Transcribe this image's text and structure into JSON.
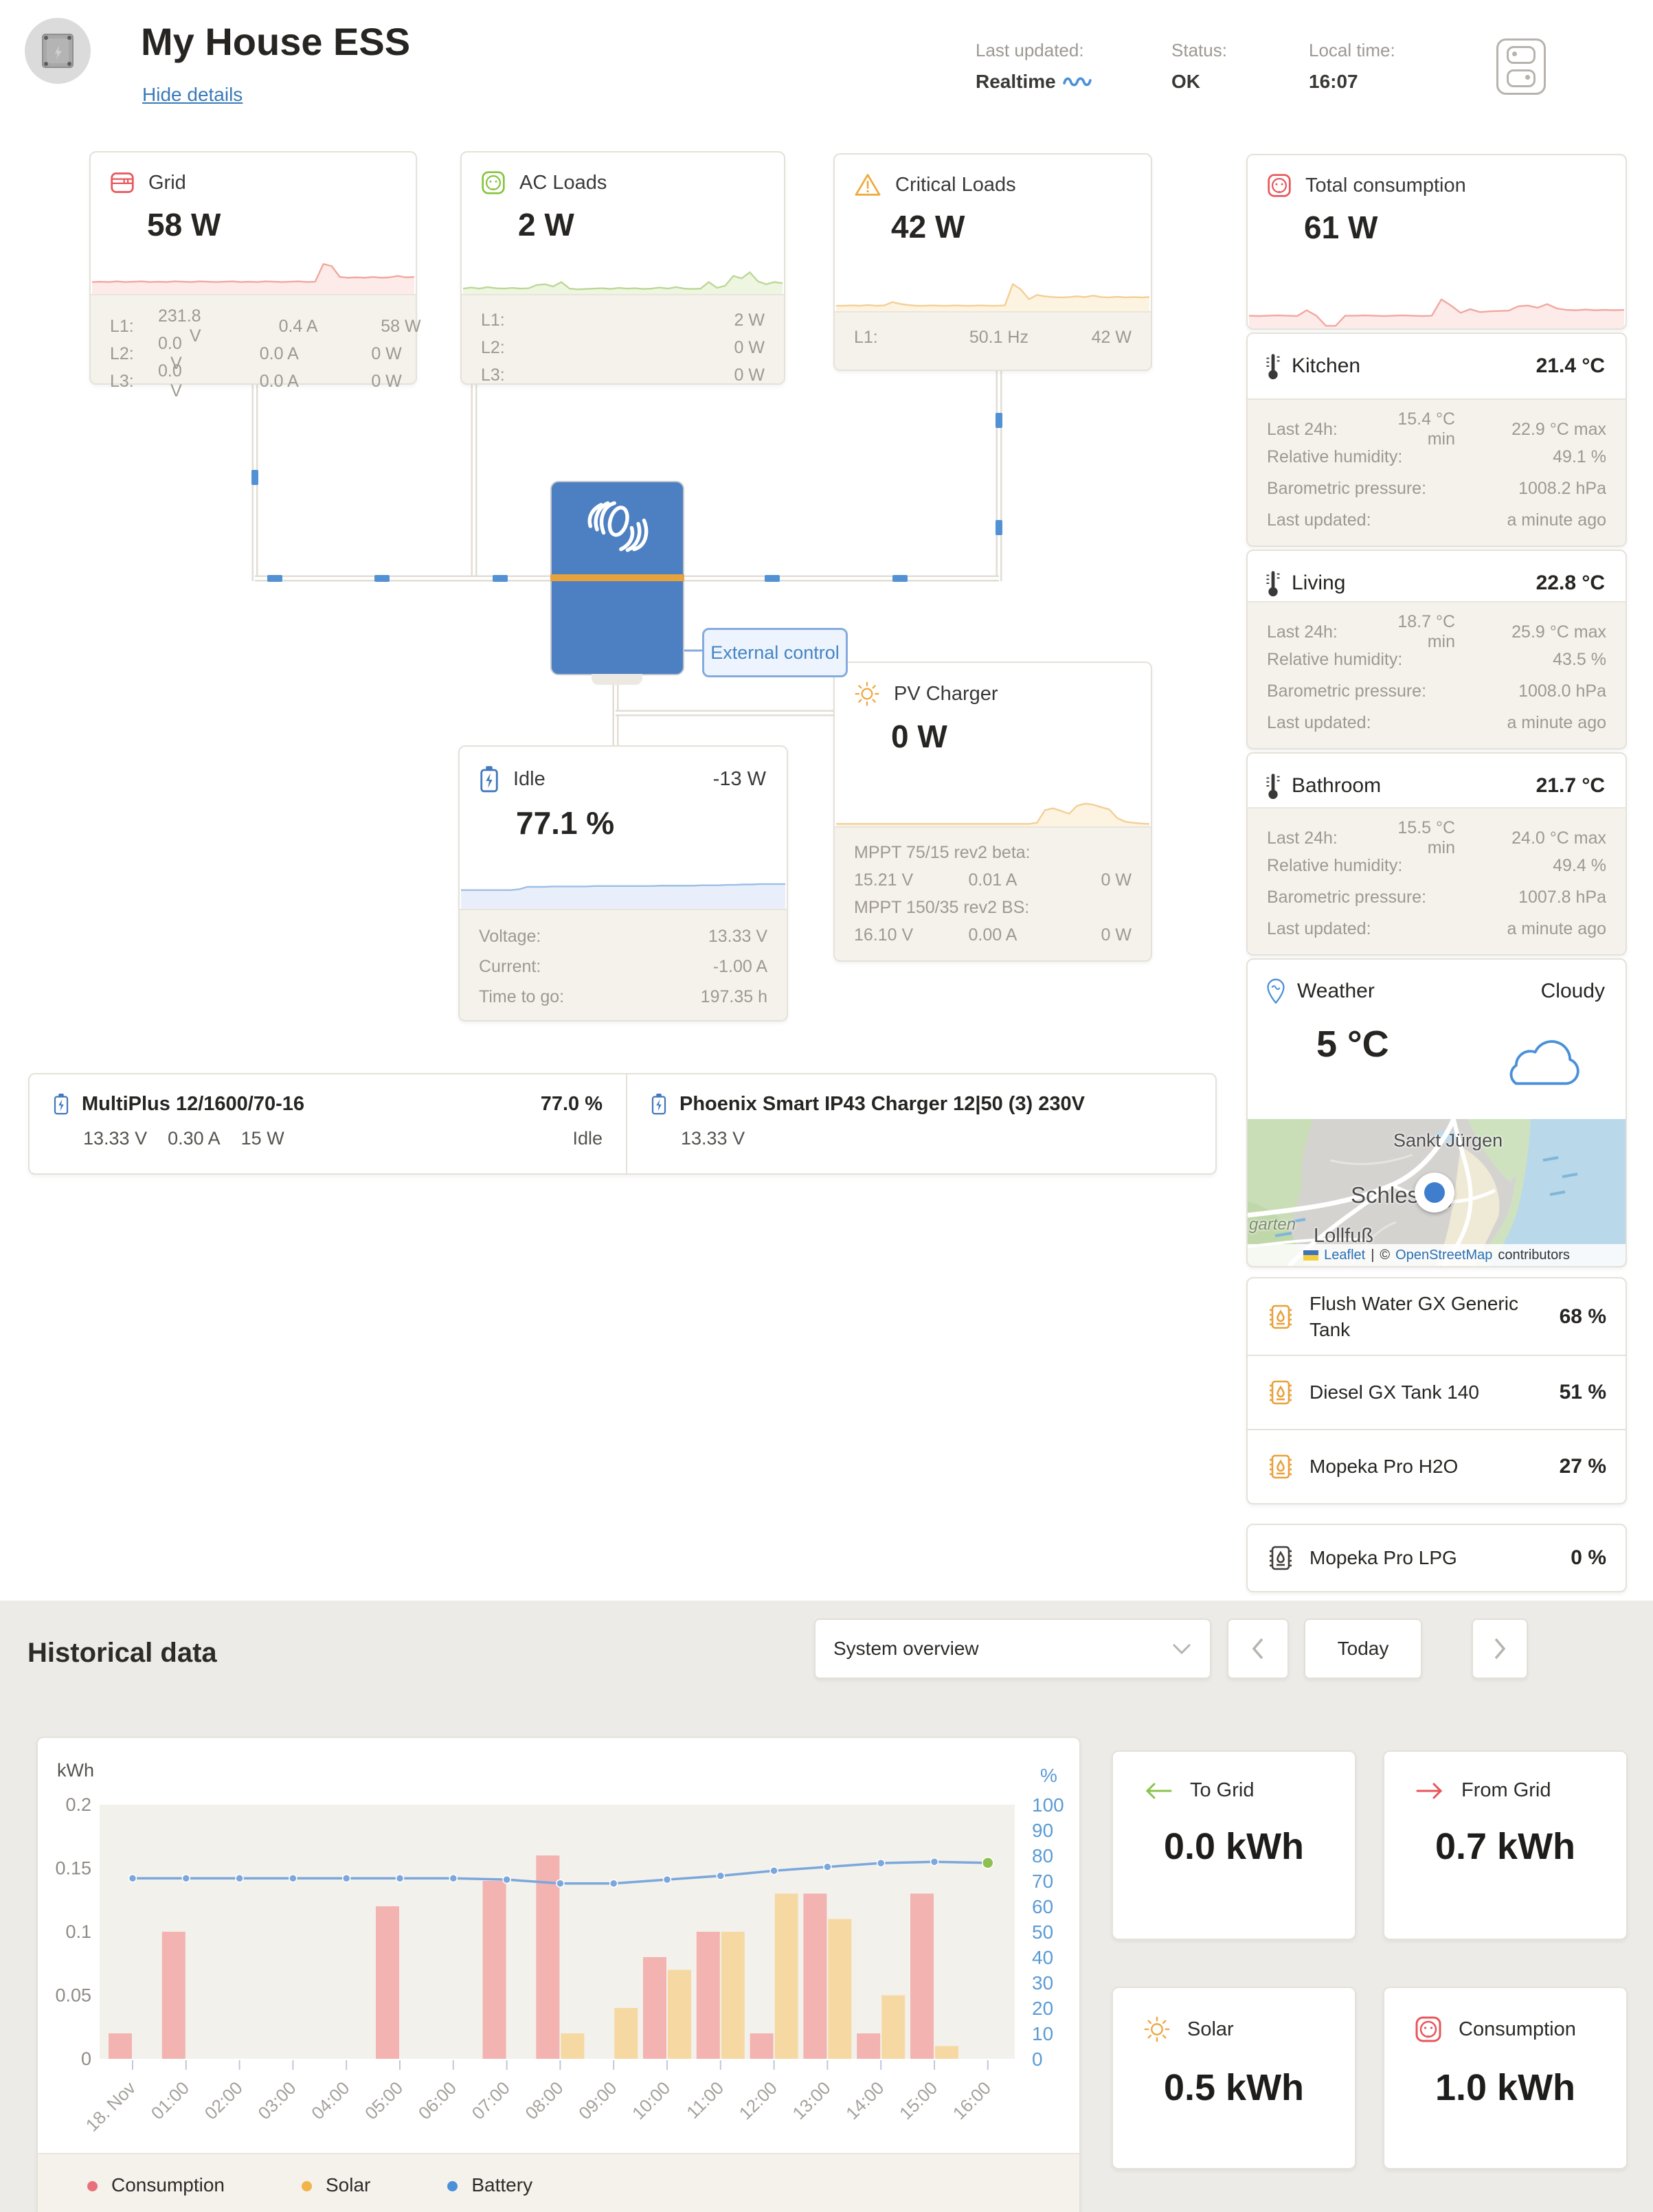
{
  "header": {
    "title": "My House ESS",
    "hide_details": "Hide details",
    "last_updated_label": "Last updated:",
    "last_updated_value": "Realtime",
    "status_label": "Status:",
    "status_value": "OK",
    "local_time_label": "Local time:",
    "local_time_value": "16:07"
  },
  "cards": {
    "grid": {
      "title": "Grid",
      "value": "58 W",
      "accent": "#e8565b",
      "spark_stroke": "#f2a79f",
      "spark_fill": "#fcebe9",
      "spark": [
        0.28,
        0.29,
        0.28,
        0.3,
        0.28,
        0.29,
        0.3,
        0.28,
        0.29,
        0.28,
        0.3,
        0.29,
        0.28,
        0.3,
        0.29,
        0.28,
        0.29,
        0.3,
        0.28,
        0.29,
        0.28,
        0.3,
        0.29,
        0.28,
        0.29,
        0.3,
        0.28,
        0.29,
        0.78,
        0.72,
        0.42,
        0.4,
        0.41,
        0.4,
        0.42,
        0.4,
        0.41,
        0.45,
        0.41,
        0.42
      ],
      "rows": [
        {
          "label": "L1:",
          "volts": "231.8 V",
          "amps": "0.4 A",
          "watts": "58 W"
        },
        {
          "label": "L2:",
          "volts": "0.0 V",
          "amps": "0.0 A",
          "watts": "0 W"
        },
        {
          "label": "L3:",
          "volts": "0.0 V",
          "amps": "0.0 A",
          "watts": "0 W"
        }
      ]
    },
    "ac_loads": {
      "title": "AC Loads",
      "value": "2 W",
      "accent": "#86c440",
      "spark_stroke": "#bcd896",
      "spark_fill": "#eef5e1",
      "spark": [
        0.1,
        0.13,
        0.1,
        0.14,
        0.11,
        0.1,
        0.12,
        0.1,
        0.11,
        0.2,
        0.22,
        0.16,
        0.28,
        0.1,
        0.08,
        0.09,
        0.1,
        0.11,
        0.09,
        0.12,
        0.1,
        0.11,
        0.09,
        0.1,
        0.13,
        0.1,
        0.14,
        0.1,
        0.09,
        0.1,
        0.28,
        0.12,
        0.18,
        0.45,
        0.38,
        0.55,
        0.3,
        0.22,
        0.28,
        0.25
      ],
      "rows": [
        {
          "label": "L1:",
          "watts": "2 W"
        },
        {
          "label": "L2:",
          "watts": "0 W"
        },
        {
          "label": "L3:",
          "watts": "0 W"
        }
      ]
    },
    "critical_loads": {
      "title": "Critical Loads",
      "value": "42 W",
      "accent": "#eda93c",
      "spark_stroke": "#f3cf96",
      "spark_fill": "#fdf3e1",
      "spark": [
        0.1,
        0.1,
        0.11,
        0.1,
        0.12,
        0.1,
        0.11,
        0.2,
        0.15,
        0.12,
        0.1,
        0.1,
        0.11,
        0.1,
        0.1,
        0.11,
        0.1,
        0.1,
        0.11,
        0.1,
        0.1,
        0.11,
        0.7,
        0.55,
        0.28,
        0.4,
        0.36,
        0.34,
        0.33,
        0.34,
        0.36,
        0.34,
        0.38,
        0.34,
        0.33,
        0.35,
        0.33,
        0.34,
        0.33,
        0.34
      ],
      "rows": [
        {
          "label": "L1:",
          "freq": "50.1 Hz",
          "watts": "42 W"
        }
      ]
    },
    "total_consumption": {
      "title": "Total consumption",
      "value": "61 W",
      "accent": "#e8565b",
      "spark_stroke": "#f2a79f",
      "spark_fill": "#fcebe9",
      "spark": [
        0.3,
        0.29,
        0.3,
        0.31,
        0.3,
        0.29,
        0.45,
        0.3,
        0.02,
        0.02,
        0.3,
        0.3,
        0.31,
        0.3,
        0.29,
        0.3,
        0.31,
        0.3,
        0.29,
        0.3,
        0.75,
        0.58,
        0.38,
        0.48,
        0.4,
        0.42,
        0.43,
        0.44,
        0.56,
        0.58,
        0.52,
        0.62,
        0.5,
        0.46,
        0.45,
        0.47,
        0.45,
        0.46,
        0.45,
        0.46
      ]
    },
    "battery": {
      "status": "Idle",
      "power": "-13 W",
      "soc": "77.1 %",
      "accent": "#4178be",
      "spark_stroke": "#9cbfe4",
      "spark_fill": "#e9effa",
      "spark": [
        0.42,
        0.42,
        0.42,
        0.42,
        0.42,
        0.42,
        0.42,
        0.44,
        0.5,
        0.5,
        0.5,
        0.51,
        0.51,
        0.51,
        0.51,
        0.51,
        0.52,
        0.52,
        0.52,
        0.52,
        0.52,
        0.52,
        0.52,
        0.52,
        0.53,
        0.53,
        0.53,
        0.53,
        0.53,
        0.54,
        0.54,
        0.54,
        0.55,
        0.55,
        0.56,
        0.56,
        0.57,
        0.57,
        0.57,
        0.57
      ],
      "rows": [
        {
          "label": "Voltage:",
          "value": "13.33 V"
        },
        {
          "label": "Current:",
          "value": "-1.00 A"
        },
        {
          "label": "Time to go:",
          "value": "197.35 h"
        }
      ]
    },
    "pv_charger": {
      "title": "PV Charger",
      "value": "0 W",
      "accent": "#f0a53f",
      "spark_stroke": "#f3cf96",
      "spark_fill": "#fdf3e1",
      "spark": [
        0.02,
        0.02,
        0.02,
        0.02,
        0.02,
        0.02,
        0.02,
        0.02,
        0.02,
        0.02,
        0.02,
        0.02,
        0.02,
        0.02,
        0.02,
        0.02,
        0.02,
        0.02,
        0.02,
        0.02,
        0.02,
        0.02,
        0.02,
        0.02,
        0.02,
        0.05,
        0.4,
        0.45,
        0.38,
        0.3,
        0.52,
        0.58,
        0.55,
        0.48,
        0.42,
        0.18,
        0.08,
        0.05,
        0.03,
        0.02
      ],
      "trackers": [
        {
          "name": "MPPT 75/15 rev2 beta:",
          "volts": "15.21 V",
          "amps": "0.01 A",
          "watts": "0 W"
        },
        {
          "name": "MPPT 150/35 rev2 BS:",
          "volts": "16.10 V",
          "amps": "0.00 A",
          "watts": "0 W"
        }
      ]
    },
    "external_control_label": "External control"
  },
  "devices": [
    {
      "name": "MultiPlus 12/1600/70-16",
      "soc": "77.0 %",
      "values": [
        "13.33 V",
        "0.30 A",
        "15 W"
      ],
      "state": "Idle"
    },
    {
      "name": "Phoenix Smart IP43 Charger 12|50 (3) 230V",
      "values": [
        "13.33 V"
      ]
    }
  ],
  "rooms": [
    {
      "name": "Kitchen",
      "temp": "21.4 °C",
      "last24_label": "Last 24h:",
      "min": "15.4 °C min",
      "max": "22.9 °C max",
      "humidity_label": "Relative humidity:",
      "humidity": "49.1 %",
      "pressure_label": "Barometric pressure:",
      "pressure": "1008.2 hPa",
      "updated_label": "Last updated:",
      "updated": "a minute ago"
    },
    {
      "name": "Living",
      "temp": "22.8 °C",
      "last24_label": "Last 24h:",
      "min": "18.7 °C min",
      "max": "25.9 °C max",
      "humidity_label": "Relative humidity:",
      "humidity": "43.5 %",
      "pressure_label": "Barometric pressure:",
      "pressure": "1008.0 hPa",
      "updated_label": "Last updated:",
      "updated": "a minute ago"
    },
    {
      "name": "Bathroom",
      "temp": "21.7 °C",
      "last24_label": "Last 24h:",
      "min": "15.5 °C min",
      "max": "24.0 °C max",
      "humidity_label": "Relative humidity:",
      "humidity": "49.4 %",
      "pressure_label": "Barometric pressure:",
      "pressure": "1007.8 hPa",
      "updated_label": "Last updated:",
      "updated": "a minute ago"
    }
  ],
  "weather": {
    "title": "Weather",
    "condition": "Cloudy",
    "temp": "5 °C",
    "accent": "#4a90d9"
  },
  "map": {
    "labels": {
      "town1": "Sankt Jürgen",
      "town2": "Schleswig",
      "town3": "Lollfuß",
      "town4": "garten"
    },
    "attribution": {
      "leaflet": "Leaflet",
      "sep": "|",
      "copy": "©",
      "osm": "OpenStreetMap",
      "contributors": "contributors"
    }
  },
  "tanks": [
    {
      "name": "Flush Water GX Generic Tank",
      "value": "68 %",
      "color": "#e9a13b"
    },
    {
      "name": "Diesel GX Tank 140",
      "value": "51 %",
      "color": "#e9a13b"
    },
    {
      "name": "Mopeka Pro H2O",
      "value": "27 %",
      "color": "#e9a13b"
    },
    {
      "name": "Mopeka Pro LPG",
      "value": "0 %",
      "color": "#403e3b"
    }
  ],
  "historical": {
    "title": "Historical data",
    "selector": "System overview",
    "today": "Today"
  },
  "summary": [
    {
      "label": "To Grid",
      "value": "0.0 kWh",
      "color": "#8bc34a"
    },
    {
      "label": "From Grid",
      "value": "0.7 kWh",
      "color": "#e8565b"
    },
    {
      "label": "Solar",
      "value": "0.5 kWh",
      "color": "#f0a53f"
    },
    {
      "label": "Consumption",
      "value": "1.0 kWh",
      "color": "#e8565b"
    }
  ],
  "chart_data": {
    "type": "bar",
    "categories": [
      "18. Nov",
      "01:00",
      "02:00",
      "03:00",
      "04:00",
      "05:00",
      "06:00",
      "07:00",
      "08:00",
      "09:00",
      "10:00",
      "11:00",
      "12:00",
      "13:00",
      "14:00",
      "15:00",
      "16:00"
    ],
    "series": [
      {
        "name": "Consumption",
        "type": "bar",
        "axis": "left",
        "color": "#f2b3b1",
        "values": [
          0.02,
          0.1,
          0,
          0,
          0,
          0.12,
          0,
          0.14,
          0.16,
          0,
          0.08,
          0.1,
          0.02,
          0.13,
          0.02,
          0.13,
          0
        ]
      },
      {
        "name": "Solar",
        "type": "bar",
        "axis": "left",
        "color": "#f6d9a2",
        "values": [
          0,
          0,
          0,
          0,
          0,
          0,
          0,
          0,
          0.02,
          0.04,
          0.07,
          0.1,
          0.13,
          0.11,
          0.05,
          0.01,
          0
        ]
      },
      {
        "name": "Battery",
        "type": "line",
        "axis": "right",
        "color": "#7ba7dc",
        "last_point_color": "#8cc152",
        "values": [
          71,
          71,
          71,
          71,
          71,
          71,
          71,
          70.5,
          69,
          69,
          70.5,
          72,
          74,
          75.5,
          77,
          77.5,
          77.1
        ]
      }
    ],
    "title": "",
    "xlabel": "",
    "ylabel_left": "kWh",
    "ylabel_right": "%",
    "ylim_left": [
      0,
      0.2
    ],
    "yticks_left": [
      "0",
      "0.05",
      "0.1",
      "0.15",
      "0.2"
    ],
    "ylim_right": [
      0,
      100
    ],
    "yticks_right": [
      "0",
      "10",
      "20",
      "30",
      "40",
      "50",
      "60",
      "70",
      "80",
      "90",
      "100"
    ],
    "grid": false,
    "legend_position": "bottom",
    "legend": [
      {
        "label": "Consumption",
        "color": "#e9707a"
      },
      {
        "label": "Solar",
        "color": "#f0b449"
      },
      {
        "label": "Battery",
        "color": "#4a90d9"
      }
    ]
  }
}
